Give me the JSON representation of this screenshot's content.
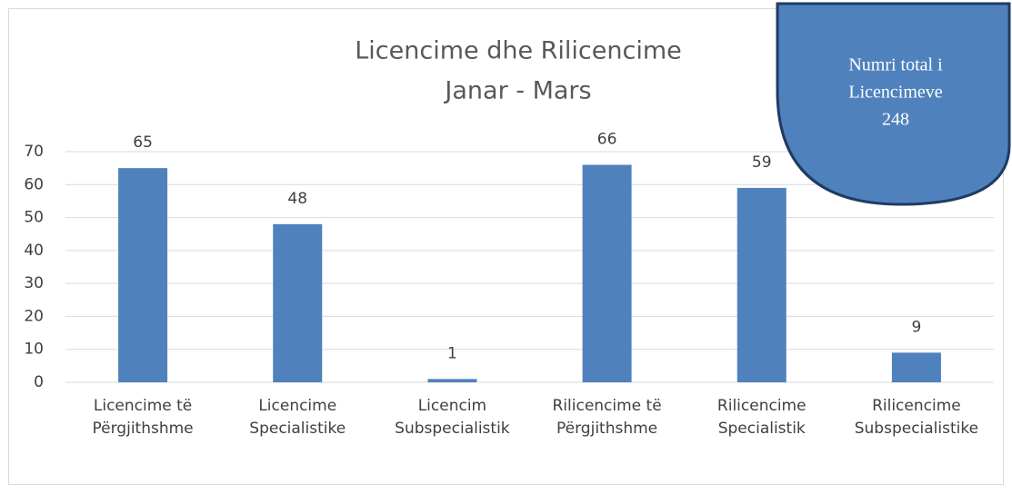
{
  "chart_data": {
    "type": "bar",
    "title": [
      "Licencime dhe Rilicencime",
      "Janar - Mars"
    ],
    "categories": [
      [
        "Licencime të",
        "Përgjithshme"
      ],
      [
        "Licencime",
        "Specialistike"
      ],
      [
        "Licencim",
        "Subspecialistik"
      ],
      [
        "Rilicencime të",
        "Përgjithshme"
      ],
      [
        "Rilicencime",
        "Specialistik"
      ],
      [
        "Rilicencime",
        "Subspecialistike"
      ]
    ],
    "values": [
      65,
      48,
      1,
      66,
      59,
      9
    ],
    "color": "#4f81bd",
    "ylim": [
      0,
      70
    ],
    "yticks": [
      0,
      10,
      20,
      30,
      40,
      50,
      60,
      70
    ],
    "grid": true,
    "annotation": {
      "text": [
        "Numri total i",
        "Licencimeve"
      ],
      "value": 248
    }
  }
}
